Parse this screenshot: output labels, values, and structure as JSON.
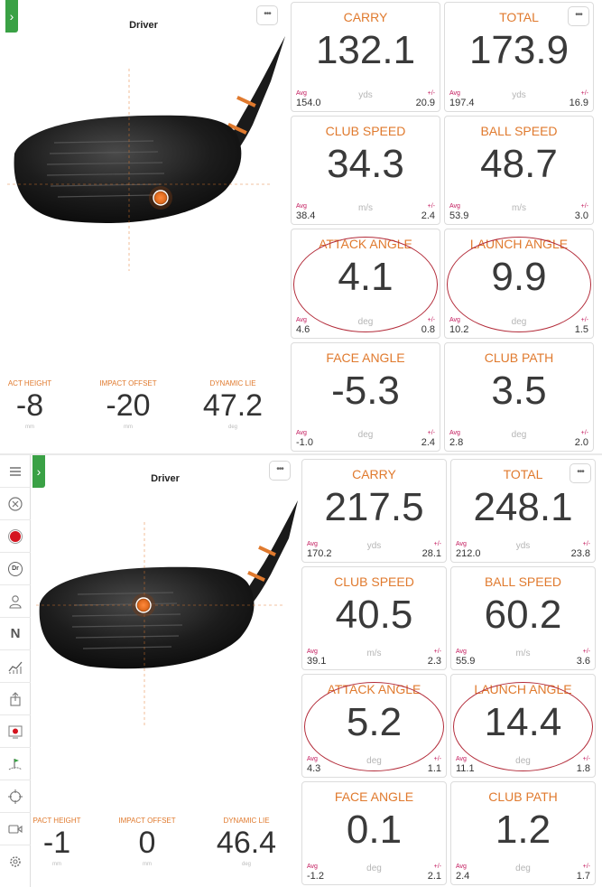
{
  "shots": [
    {
      "club": "Driver",
      "impact": {
        "height_label": "ACT HEIGHT",
        "height_value": "-8",
        "height_unit": "mm",
        "offset_label": "IMPACT OFFSET",
        "offset_value": "-20",
        "offset_unit": "mm",
        "lie_label": "DYNAMIC LIE",
        "lie_value": "47.2",
        "lie_unit": "deg"
      },
      "tiles": [
        {
          "label": "CARRY",
          "value": "132.1",
          "unit": "yds",
          "avg_label": "Avg",
          "avg": "154.0",
          "pm_label": "+/-",
          "pm": "20.9"
        },
        {
          "label": "TOTAL",
          "value": "173.9",
          "unit": "yds",
          "avg_label": "Avg",
          "avg": "197.4",
          "pm_label": "+/-",
          "pm": "16.9"
        },
        {
          "label": "CLUB SPEED",
          "value": "34.3",
          "unit": "m/s",
          "avg_label": "Avg",
          "avg": "38.4",
          "pm_label": "+/-",
          "pm": "2.4"
        },
        {
          "label": "BALL SPEED",
          "value": "48.7",
          "unit": "m/s",
          "avg_label": "Avg",
          "avg": "53.9",
          "pm_label": "+/-",
          "pm": "3.0"
        },
        {
          "label": "ATTACK ANGLE",
          "value": "4.1",
          "unit": "deg",
          "avg_label": "Avg",
          "avg": "4.6",
          "pm_label": "+/-",
          "pm": "0.8"
        },
        {
          "label": "LAUNCH ANGLE",
          "value": "9.9",
          "unit": "deg",
          "avg_label": "Avg",
          "avg": "10.2",
          "pm_label": "+/-",
          "pm": "1.5"
        },
        {
          "label": "FACE ANGLE",
          "value": "-5.3",
          "unit": "deg",
          "avg_label": "Avg",
          "avg": "-1.0",
          "pm_label": "+/-",
          "pm": "2.4"
        },
        {
          "label": "CLUB PATH",
          "value": "3.5",
          "unit": "deg",
          "avg_label": "Avg",
          "avg": "2.8",
          "pm_label": "+/-",
          "pm": "2.0"
        }
      ]
    },
    {
      "club": "Driver",
      "impact": {
        "height_label": "PACT HEIGHT",
        "height_value": "-1",
        "height_unit": "mm",
        "offset_label": "IMPACT OFFSET",
        "offset_value": "0",
        "offset_unit": "mm",
        "lie_label": "DYNAMIC LIE",
        "lie_value": "46.4",
        "lie_unit": "deg"
      },
      "tiles": [
        {
          "label": "CARRY",
          "value": "217.5",
          "unit": "yds",
          "avg_label": "Avg",
          "avg": "170.2",
          "pm_label": "+/-",
          "pm": "28.1"
        },
        {
          "label": "TOTAL",
          "value": "248.1",
          "unit": "yds",
          "avg_label": "Avg",
          "avg": "212.0",
          "pm_label": "+/-",
          "pm": "23.8"
        },
        {
          "label": "CLUB SPEED",
          "value": "40.5",
          "unit": "m/s",
          "avg_label": "Avg",
          "avg": "39.1",
          "pm_label": "+/-",
          "pm": "2.3"
        },
        {
          "label": "BALL SPEED",
          "value": "60.2",
          "unit": "m/s",
          "avg_label": "Avg",
          "avg": "55.9",
          "pm_label": "+/-",
          "pm": "3.6"
        },
        {
          "label": "ATTACK ANGLE",
          "value": "5.2",
          "unit": "deg",
          "avg_label": "Avg",
          "avg": "4.3",
          "pm_label": "+/-",
          "pm": "1.1"
        },
        {
          "label": "LAUNCH ANGLE",
          "value": "14.4",
          "unit": "deg",
          "avg_label": "Avg",
          "avg": "11.1",
          "pm_label": "+/-",
          "pm": "1.8"
        },
        {
          "label": "FACE ANGLE",
          "value": "0.1",
          "unit": "deg",
          "avg_label": "Avg",
          "avg": "-1.2",
          "pm_label": "+/-",
          "pm": "2.1"
        },
        {
          "label": "CLUB PATH",
          "value": "1.2",
          "unit": "deg",
          "avg_label": "Avg",
          "avg": "2.4",
          "pm_label": "+/-",
          "pm": "1.7"
        }
      ]
    }
  ],
  "sidebar_icons": [
    "menu-icon",
    "close-circle-icon",
    "record-icon",
    "club-dr-icon",
    "player-icon",
    "normal-mode-icon",
    "trend-chart-icon",
    "share-icon",
    "screen-capture-icon",
    "course-icon",
    "target-icon",
    "video-icon",
    "settings-icon"
  ],
  "sidebar_club_badge": "Dr",
  "sidebar_mode_letter": "N",
  "menu_glyph": "•••",
  "expand_glyph": "›",
  "colors": {
    "accent": "#e07a2e",
    "green": "#3aa145",
    "ring": "#b32c3a",
    "avg": "#c2185b"
  }
}
